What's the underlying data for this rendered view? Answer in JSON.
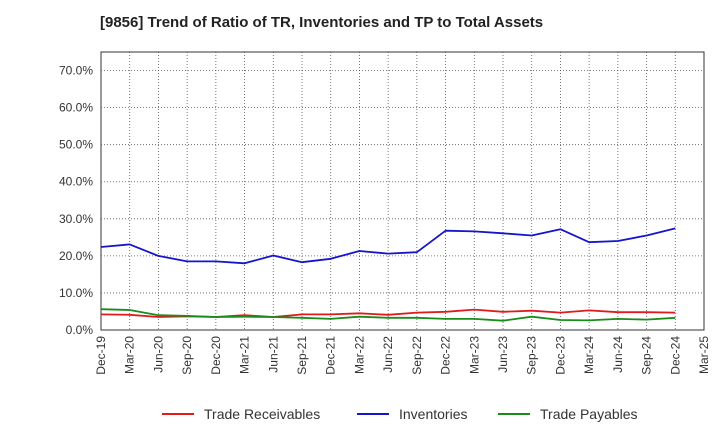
{
  "chart_data": {
    "type": "line",
    "title": "[9856]  Trend of Ratio of TR, Inventories and TP to Total Assets",
    "xlabel": "",
    "ylabel": "",
    "ylim": [
      0,
      0.75
    ],
    "y_ticks": [
      0,
      0.1,
      0.2,
      0.3,
      0.4,
      0.5,
      0.6,
      0.7
    ],
    "y_tick_labels": [
      "0.0%",
      "10.0%",
      "20.0%",
      "30.0%",
      "40.0%",
      "50.0%",
      "60.0%",
      "70.0%"
    ],
    "x_tick_labels": [
      "Dec-19",
      "Mar-20",
      "Jun-20",
      "Sep-20",
      "Dec-20",
      "Mar-21",
      "Jun-21",
      "Sep-21",
      "Dec-21",
      "Mar-22",
      "Jun-22",
      "Sep-22",
      "Dec-22",
      "Mar-23",
      "Jun-23",
      "Sep-23",
      "Dec-23",
      "Mar-24",
      "Jun-24",
      "Sep-24",
      "Dec-24",
      "Mar-25"
    ],
    "categories": [
      "Dec-19",
      "Mar-20",
      "Jun-20",
      "Sep-20",
      "Dec-20",
      "Mar-21",
      "Jun-21",
      "Sep-21",
      "Dec-21",
      "Mar-22",
      "Jun-22",
      "Sep-22",
      "Dec-22",
      "Mar-23",
      "Jun-23",
      "Sep-23",
      "Dec-23",
      "Mar-24",
      "Jun-24",
      "Sep-24",
      "Dec-24"
    ],
    "grid": true,
    "legend_position": "bottom",
    "series": [
      {
        "name": "Trade Receivables",
        "color": "#e31a1c",
        "values": [
          0.042,
          0.041,
          0.035,
          0.037,
          0.035,
          0.04,
          0.035,
          0.042,
          0.042,
          0.045,
          0.041,
          0.047,
          0.049,
          0.055,
          0.049,
          0.052,
          0.047,
          0.053,
          0.048,
          0.048,
          0.047
        ]
      },
      {
        "name": "Inventories",
        "color": "#1515cc",
        "values": [
          0.224,
          0.231,
          0.2,
          0.185,
          0.185,
          0.18,
          0.201,
          0.183,
          0.192,
          0.213,
          0.206,
          0.21,
          0.268,
          0.266,
          0.261,
          0.255,
          0.272,
          0.237,
          0.24,
          0.255,
          0.274
        ]
      },
      {
        "name": "Trade Payables",
        "color": "#1a8c1a",
        "values": [
          0.056,
          0.054,
          0.04,
          0.038,
          0.035,
          0.036,
          0.035,
          0.033,
          0.03,
          0.036,
          0.033,
          0.033,
          0.03,
          0.03,
          0.025,
          0.036,
          0.027,
          0.026,
          0.03,
          0.028,
          0.033
        ]
      }
    ]
  }
}
